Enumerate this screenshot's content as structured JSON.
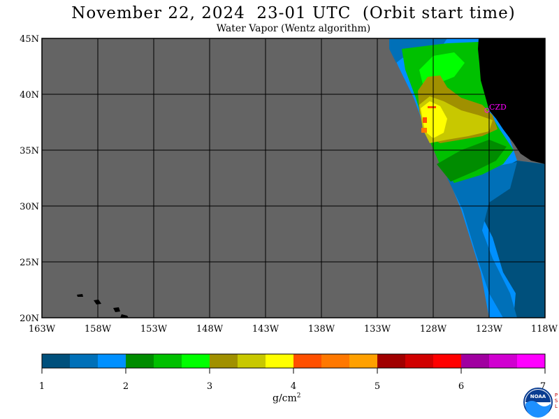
{
  "header": {
    "title": "November 22, 2024  23-01 UTC  (Orbit start time)",
    "subtitle": "Water Vapor (Wentz algorithm)"
  },
  "map": {
    "lat_labels": [
      "45N",
      "40N",
      "35N",
      "30N",
      "25N",
      "20N"
    ],
    "lon_labels": [
      "163W",
      "158W",
      "153W",
      "148W",
      "143W",
      "138W",
      "133W",
      "128W",
      "123W",
      "118W"
    ],
    "station_label": "CZD",
    "colors": {
      "no_data": "#646464",
      "land": "#000000",
      "station": "#ff00ff"
    }
  },
  "legend": {
    "colors": [
      "#00507c",
      "#0070b8",
      "#0090ff",
      "#008c00",
      "#00c000",
      "#00ff00",
      "#a09000",
      "#c8c800",
      "#ffff00",
      "#ff5000",
      "#ff7800",
      "#ffa000",
      "#a00000",
      "#d00000",
      "#ff0000",
      "#a000a0",
      "#d000d0",
      "#ff00ff"
    ],
    "tick_labels": [
      "1",
      "2",
      "3",
      "4",
      "5",
      "6",
      "7"
    ],
    "unit_base": "g/cm",
    "unit_exp": "2"
  },
  "branding": {
    "logo_text": "NOAA",
    "psl_text": "PSL"
  }
}
